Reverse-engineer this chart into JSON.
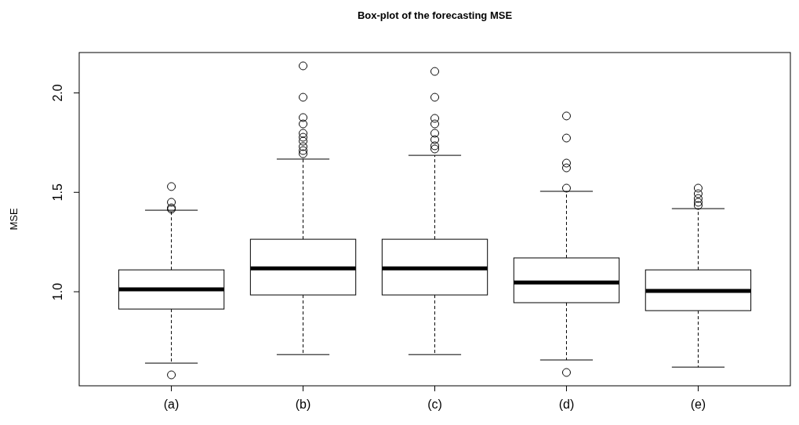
{
  "chart_data": {
    "type": "box",
    "title": "Box-plot of the forecasting MSE",
    "ylabel": "MSE",
    "categories": [
      "(a)",
      "(b)",
      "(c)",
      "(d)",
      "(e)"
    ],
    "ylim": [
      0.527,
      2.203
    ],
    "yticks": [
      {
        "value": 1,
        "label": "1.0"
      },
      {
        "value": 1.5,
        "label": "1.5"
      },
      {
        "value": 2,
        "label": "2.0"
      }
    ],
    "grid": false,
    "boxes": [
      {
        "low": 0.641,
        "q1": 0.913,
        "median": 1.012,
        "q3": 1.11,
        "high": 1.41,
        "outliers": [
          0.582,
          1.529,
          1.45,
          1.422,
          1.415
        ]
      },
      {
        "low": 0.684,
        "q1": 0.984,
        "median": 1.118,
        "q3": 1.264,
        "high": 1.667,
        "outliers": [
          2.136,
          1.978,
          1.876,
          1.844,
          1.797,
          1.777,
          1.757,
          1.73,
          1.71,
          1.694
        ]
      },
      {
        "low": 0.684,
        "q1": 0.984,
        "median": 1.118,
        "q3": 1.264,
        "high": 1.686,
        "outliers": [
          2.108,
          1.978,
          1.872,
          1.844,
          1.797,
          1.765,
          1.734,
          1.718
        ]
      },
      {
        "low": 0.657,
        "q1": 0.945,
        "median": 1.047,
        "q3": 1.17,
        "high": 1.505,
        "outliers": [
          0.594,
          1.884,
          1.773,
          1.647,
          1.623,
          1.521
        ]
      },
      {
        "low": 0.621,
        "q1": 0.905,
        "median": 1.004,
        "q3": 1.11,
        "high": 1.418,
        "outliers": [
          1.521,
          1.493,
          1.469,
          1.45,
          1.434
        ]
      }
    ]
  }
}
